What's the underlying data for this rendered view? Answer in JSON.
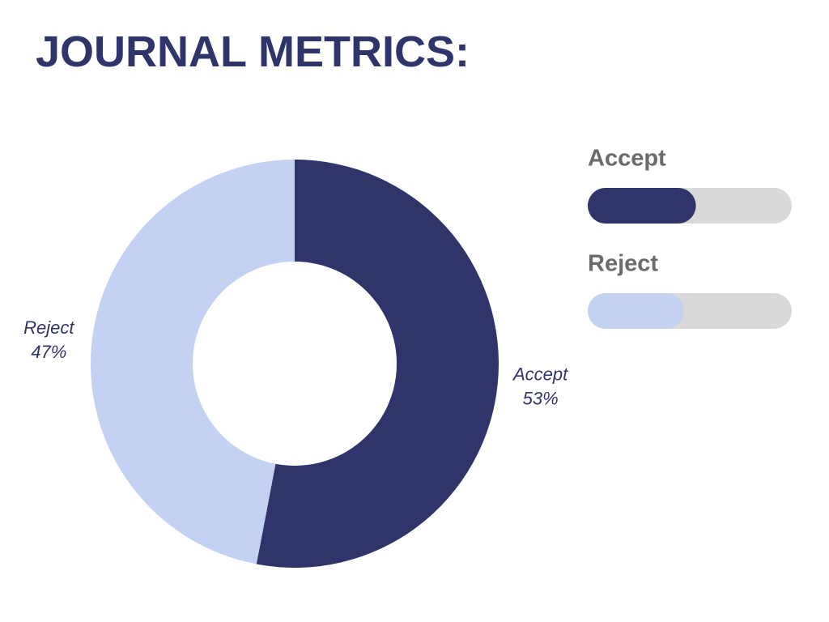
{
  "chart_data": {
    "type": "donut",
    "title": "JOURNAL METRICS:",
    "categories": [
      "Accept",
      "Reject"
    ],
    "values": [
      53,
      47
    ],
    "value_labels": [
      "53%",
      "47%"
    ],
    "colors": [
      "#2f346b",
      "#c3d2f2"
    ]
  }
}
